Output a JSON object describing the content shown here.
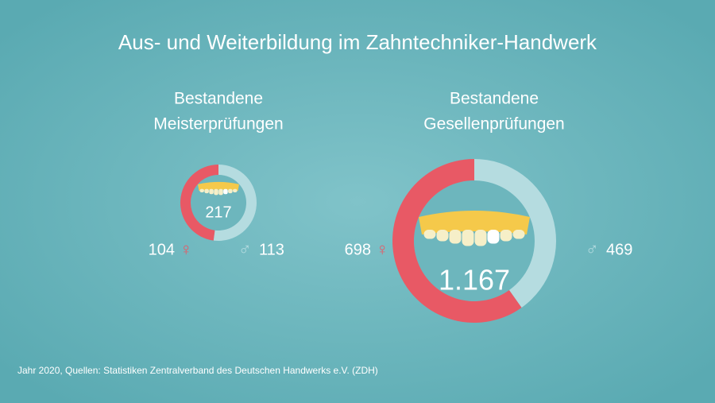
{
  "title": "Aus- und Weiterbildung im Zahntechniker-Handwerk",
  "source": "Jahr 2020, Quellen: Statistiken Zentralverband des Deutschen Handwerks e.V. (ZDH)",
  "chart_data": [
    {
      "type": "donut",
      "title": [
        "Bestandene",
        "Meisterprüfungen"
      ],
      "categories": [
        "♀",
        "♂"
      ],
      "values": [
        104,
        113
      ],
      "colors": [
        "#e85965",
        "#b5dce0"
      ],
      "total": 217
    },
    {
      "type": "donut",
      "title": [
        "Bestandene",
        "Gesellenprüfungen"
      ],
      "categories": [
        "♀",
        "♂"
      ],
      "values": [
        698,
        469
      ],
      "colors": [
        "#e85965",
        "#b5dce0"
      ],
      "total": 1167,
      "total_label": "1.167"
    }
  ]
}
